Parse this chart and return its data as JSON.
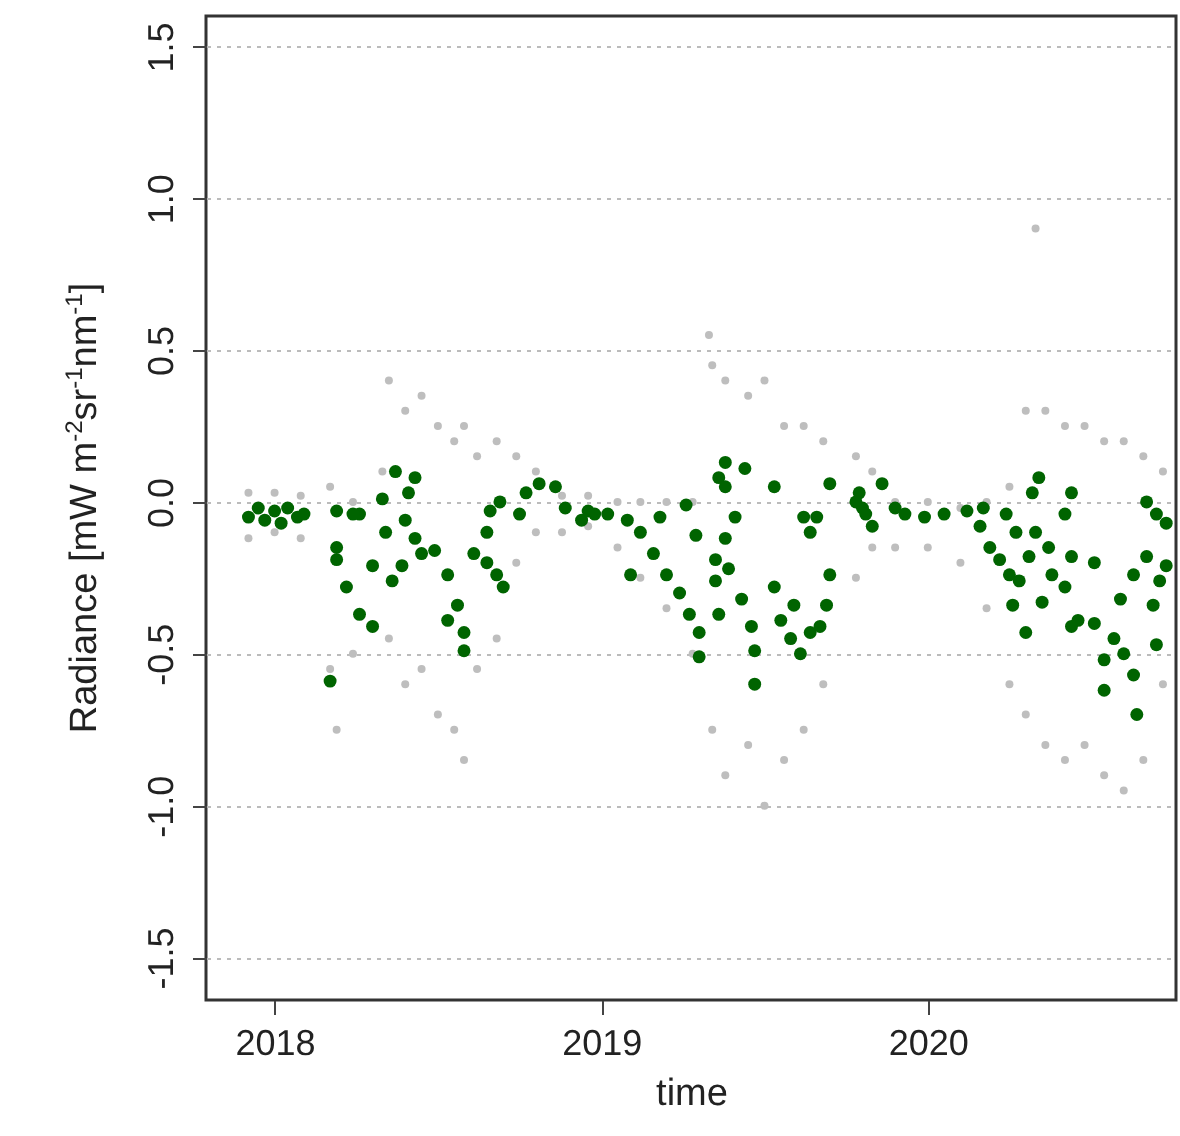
{
  "chart_data": {
    "type": "scatter",
    "xlabel": "time",
    "ylabel": "Radiance [mW m$^{-2}$sr$^{-1}$nm$^{-1}$]",
    "xlim": [
      2017.79,
      2020.76
    ],
    "xticks": [
      2018,
      2019,
      2020
    ],
    "ylim": [
      -1.64,
      1.6
    ],
    "yticks": [
      {
        "value": -1.5,
        "label": "-1.5"
      },
      {
        "value": -1,
        "label": "-1.0"
      },
      {
        "value": -0.5,
        "label": "-0.5"
      },
      {
        "value": 0,
        "label": "0.0"
      },
      {
        "value": 0.5,
        "label": "0.5"
      },
      {
        "value": 1,
        "label": "1.0"
      },
      {
        "value": 1.5,
        "label": "1.5"
      }
    ],
    "grid": "y",
    "marker": "circle",
    "series": [
      {
        "color": "#bebebe",
        "x": [
          2017.92,
          2017.92,
          2018.0,
          2018.0,
          2018.08,
          2018.08,
          2018.17,
          2018.17,
          2018.19,
          2018.24,
          2018.24,
          2018.33,
          2018.35,
          2018.35,
          2018.4,
          2018.4,
          2018.45,
          2018.45,
          2018.5,
          2018.5,
          2018.55,
          2018.55,
          2018.58,
          2018.58,
          2018.62,
          2018.62,
          2018.68,
          2018.68,
          2018.74,
          2018.74,
          2018.8,
          2018.8,
          2018.88,
          2018.88,
          2018.96,
          2018.96,
          2019.05,
          2019.05,
          2019.12,
          2019.12,
          2019.2,
          2019.2,
          2019.28,
          2019.28,
          2019.34,
          2019.34,
          2019.38,
          2019.38,
          2019.45,
          2019.45,
          2019.5,
          2019.5,
          2019.56,
          2019.56,
          2019.62,
          2019.62,
          2019.68,
          2019.68,
          2019.78,
          2019.78,
          2019.83,
          2019.83,
          2019.9,
          2019.9,
          2020.0,
          2020.0,
          2020.1,
          2020.1,
          2020.18,
          2020.18,
          2020.25,
          2020.25,
          2020.3,
          2020.3,
          2020.36,
          2020.36,
          2020.42,
          2020.42,
          2020.48,
          2020.48,
          2020.54,
          2020.54,
          2020.6,
          2020.6,
          2020.66,
          2020.66,
          2020.72,
          2020.72,
          2020.33,
          2019.33
        ],
        "values": [
          0.03,
          -0.12,
          0.03,
          -0.1,
          0.02,
          -0.12,
          0.05,
          -0.55,
          -0.75,
          0.0,
          -0.5,
          0.1,
          0.4,
          -0.45,
          0.3,
          -0.6,
          0.35,
          -0.55,
          0.25,
          -0.7,
          0.2,
          -0.75,
          0.25,
          -0.85,
          0.15,
          -0.55,
          0.2,
          -0.45,
          0.15,
          -0.2,
          0.1,
          -0.1,
          0.02,
          -0.1,
          0.02,
          -0.08,
          0.0,
          -0.15,
          0.0,
          -0.25,
          0.0,
          -0.35,
          0.0,
          -0.5,
          0.45,
          -0.75,
          0.4,
          -0.9,
          0.35,
          -0.8,
          0.4,
          -1.0,
          0.25,
          -0.85,
          0.25,
          -0.75,
          0.2,
          -0.6,
          0.15,
          -0.25,
          0.1,
          -0.15,
          0.0,
          -0.15,
          0.0,
          -0.15,
          -0.02,
          -0.2,
          0.0,
          -0.35,
          0.05,
          -0.6,
          0.3,
          -0.7,
          0.3,
          -0.8,
          0.25,
          -0.85,
          0.25,
          -0.8,
          0.2,
          -0.9,
          0.2,
          -0.95,
          0.15,
          -0.85,
          0.1,
          -0.6,
          0.9,
          0.55
        ]
      },
      {
        "color": "#006400",
        "x": [
          2017.92,
          2017.95,
          2017.97,
          2018.0,
          2018.02,
          2018.04,
          2018.07,
          2018.09,
          2018.17,
          2018.19,
          2018.19,
          2018.22,
          2018.26,
          2018.3,
          2018.26,
          2018.33,
          2018.34,
          2018.36,
          2018.37,
          2018.4,
          2018.41,
          2018.43,
          2018.39,
          2018.43,
          2018.45,
          2018.49,
          2018.53,
          2018.56,
          2018.58,
          2018.58,
          2018.53,
          2018.61,
          2018.65,
          2018.68,
          2018.7,
          2018.66,
          2018.69,
          2018.65,
          2018.75,
          2018.77,
          2018.81,
          2018.86,
          2018.89,
          2018.94,
          2018.98,
          2018.3,
          2018.24,
          2018.19,
          2018.96,
          2019.02,
          2019.08,
          2019.12,
          2019.16,
          2019.2,
          2019.24,
          2019.27,
          2019.3,
          2019.3,
          2019.09,
          2019.18,
          2019.26,
          2019.29,
          2019.35,
          2019.38,
          2019.36,
          2019.38,
          2019.44,
          2019.41,
          2019.38,
          2019.39,
          2019.35,
          2019.36,
          2019.43,
          2019.46,
          2019.47,
          2019.47,
          2019.53,
          2019.53,
          2019.55,
          2019.58,
          2019.61,
          2019.64,
          2019.62,
          2019.66,
          2019.64,
          2019.7,
          2019.7,
          2019.69,
          2019.67,
          2019.59,
          2019.8,
          2019.79,
          2019.83,
          2019.78,
          2019.81,
          2019.86,
          2019.9,
          2019.93,
          2019.99,
          2020.05,
          2020.12,
          2020.17,
          2020.16,
          2020.19,
          2020.22,
          2020.24,
          2020.25,
          2020.27,
          2020.28,
          2020.26,
          2020.3,
          2020.31,
          2020.32,
          2020.34,
          2020.35,
          2020.33,
          2020.37,
          2020.38,
          2020.42,
          2020.42,
          2020.44,
          2020.44,
          2020.46,
          2020.51,
          2020.51,
          2020.54,
          2020.54,
          2020.57,
          2020.59,
          2020.6,
          2020.63,
          2020.64,
          2020.63,
          2020.67,
          2020.67,
          2020.7,
          2020.73,
          2020.69,
          2020.71,
          2020.7,
          2020.73,
          2020.44
        ],
        "values": [
          -0.05,
          -0.02,
          -0.06,
          -0.03,
          -0.07,
          -0.02,
          -0.05,
          -0.04,
          -0.59,
          -0.03,
          -0.19,
          -0.28,
          -0.37,
          -0.41,
          -0.04,
          0.01,
          -0.1,
          -0.26,
          0.1,
          -0.06,
          0.03,
          0.08,
          -0.21,
          -0.12,
          -0.17,
          -0.16,
          -0.24,
          -0.34,
          -0.43,
          -0.49,
          -0.39,
          -0.17,
          -0.2,
          -0.24,
          -0.28,
          -0.03,
          0.0,
          -0.1,
          -0.04,
          0.03,
          0.06,
          0.05,
          -0.02,
          -0.06,
          -0.04,
          -0.21,
          -0.04,
          -0.15,
          -0.03,
          -0.04,
          -0.06,
          -0.1,
          -0.17,
          -0.24,
          -0.3,
          -0.37,
          -0.43,
          -0.51,
          -0.24,
          -0.05,
          -0.01,
          -0.11,
          -0.19,
          0.13,
          0.08,
          0.05,
          0.11,
          -0.05,
          -0.12,
          -0.22,
          -0.26,
          -0.37,
          -0.32,
          -0.41,
          -0.49,
          -0.6,
          0.05,
          -0.28,
          -0.39,
          -0.45,
          -0.5,
          -0.43,
          -0.05,
          -0.05,
          -0.1,
          0.06,
          -0.24,
          -0.34,
          -0.41,
          -0.34,
          -0.02,
          0.03,
          -0.08,
          0.0,
          -0.04,
          0.06,
          -0.02,
          -0.04,
          -0.05,
          -0.04,
          -0.03,
          -0.02,
          -0.08,
          -0.15,
          -0.19,
          -0.04,
          -0.24,
          -0.1,
          -0.26,
          -0.34,
          -0.43,
          -0.18,
          0.03,
          0.08,
          -0.33,
          -0.1,
          -0.15,
          -0.24,
          -0.28,
          -0.04,
          0.03,
          -0.18,
          -0.39,
          -0.4,
          -0.2,
          -0.52,
          -0.62,
          -0.45,
          -0.32,
          -0.5,
          -0.57,
          -0.7,
          -0.24,
          -0.18,
          0.0,
          -0.04,
          -0.07,
          -0.34,
          -0.26,
          -0.47,
          -0.21,
          -0.41
        ]
      }
    ]
  }
}
